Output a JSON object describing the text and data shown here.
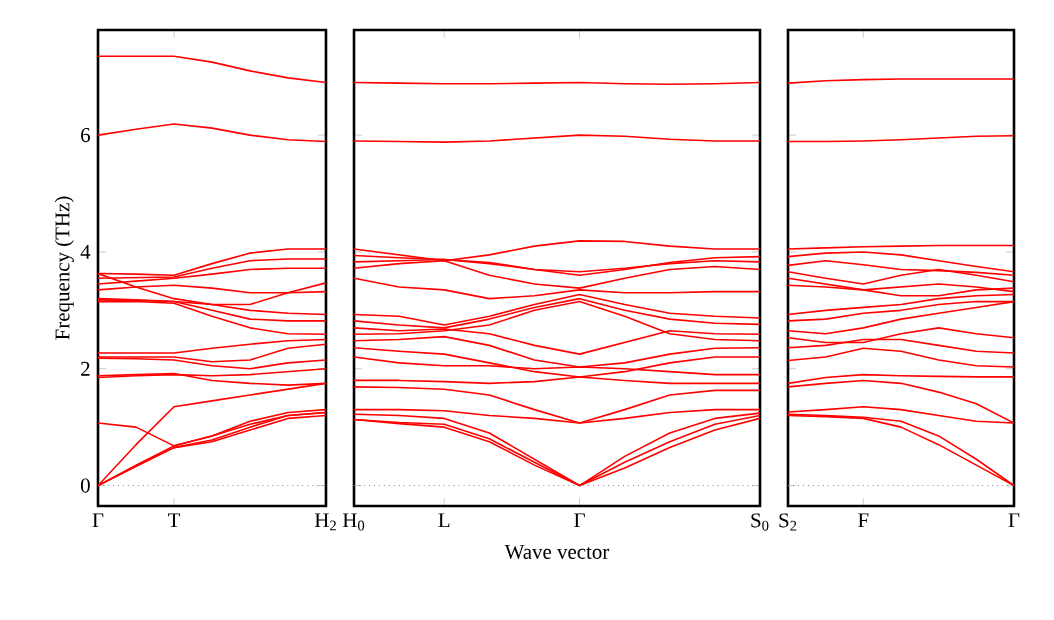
{
  "chart_data": [
    {
      "type": "line",
      "ylabel": "Frequency (THz)",
      "ylim": [
        -0.35,
        7.8
      ],
      "categories": [
        "Γ",
        null,
        "T",
        null,
        null,
        null,
        "H$_{2}$"
      ],
      "yticks": [
        0,
        2,
        4,
        6
      ],
      "ref_lines": [
        {
          "axis": "y",
          "value": 0,
          "color": "#8080c0",
          "line_style": "dotted"
        }
      ],
      "series": [
        {
          "color": "#ff0000",
          "values": [
            7.35,
            7.35,
            7.35,
            7.25,
            7.1,
            6.98,
            6.9
          ]
        },
        {
          "color": "#ff0000",
          "values": [
            6.0,
            6.1,
            6.19,
            6.12,
            6.0,
            5.92,
            5.89
          ]
        },
        {
          "color": "#ff0000",
          "values": [
            3.63,
            3.62,
            3.6,
            3.8,
            3.98,
            4.05,
            4.05
          ]
        },
        {
          "color": "#ff0000",
          "values": [
            3.55,
            3.56,
            3.57,
            3.72,
            3.85,
            3.88,
            3.88
          ]
        },
        {
          "color": "#ff0000",
          "values": [
            3.45,
            3.5,
            3.55,
            3.62,
            3.7,
            3.72,
            3.72
          ]
        },
        {
          "color": "#ff0000",
          "values": [
            3.63,
            3.4,
            3.2,
            3.1,
            3.1,
            3.3,
            3.47
          ]
        },
        {
          "color": "#ff0000",
          "values": [
            3.35,
            3.4,
            3.43,
            3.38,
            3.3,
            3.3,
            3.32
          ]
        },
        {
          "color": "#ff0000",
          "values": [
            3.2,
            3.18,
            3.15,
            3.1,
            3.0,
            2.95,
            2.93
          ]
        },
        {
          "color": "#ff0000",
          "values": [
            3.18,
            3.17,
            3.15,
            3.0,
            2.85,
            2.82,
            2.82
          ]
        },
        {
          "color": "#ff0000",
          "values": [
            3.15,
            3.15,
            3.12,
            2.9,
            2.7,
            2.6,
            2.59
          ]
        },
        {
          "color": "#ff0000",
          "values": [
            2.27,
            2.27,
            2.27,
            2.35,
            2.42,
            2.48,
            2.5
          ]
        },
        {
          "color": "#ff0000",
          "values": [
            2.2,
            2.2,
            2.2,
            2.12,
            2.15,
            2.35,
            2.42
          ]
        },
        {
          "color": "#ff0000",
          "values": [
            2.18,
            2.17,
            2.15,
            2.05,
            2.0,
            2.1,
            2.15
          ]
        },
        {
          "color": "#ff0000",
          "values": [
            1.85,
            1.88,
            1.9,
            1.88,
            1.9,
            1.95,
            2.0
          ]
        },
        {
          "color": "#ff0000",
          "values": [
            1.88,
            1.9,
            1.92,
            1.8,
            1.75,
            1.72,
            1.75
          ]
        },
        {
          "color": "#ff0000",
          "values": [
            1.07,
            1.0,
            0.68,
            0.85,
            1.05,
            1.2,
            1.25
          ]
        },
        {
          "color": "#ff0000",
          "values": [
            0,
            0.7,
            1.35,
            1.45,
            1.55,
            1.65,
            1.75
          ]
        },
        {
          "color": "#ff0000",
          "values": [
            0,
            0.35,
            0.68,
            0.85,
            1.1,
            1.25,
            1.3
          ]
        },
        {
          "color": "#ff0000",
          "values": [
            0,
            0.33,
            0.65,
            0.78,
            1.0,
            1.2,
            1.25
          ]
        },
        {
          "color": "#ff0000",
          "values": [
            0,
            0.33,
            0.65,
            0.75,
            0.95,
            1.15,
            1.2
          ]
        }
      ]
    },
    {
      "type": "line",
      "xlabel": "Wave vector",
      "ylim": [
        -0.35,
        7.8
      ],
      "tick_labels": "x",
      "categories": [
        "H$_{0}$",
        null,
        "L",
        null,
        null,
        "Γ",
        null,
        null,
        null,
        "S$_{0}$"
      ],
      "yticks": [
        0,
        2,
        4,
        6
      ],
      "ref_lines": [
        {
          "axis": "y",
          "value": 0,
          "color": "#8080c0",
          "line_style": "dotted"
        }
      ],
      "series": [
        {
          "color": "#ff0000",
          "values": [
            6.9,
            6.89,
            6.88,
            6.88,
            6.89,
            6.9,
            6.88,
            6.87,
            6.88,
            6.9
          ]
        },
        {
          "color": "#ff0000",
          "values": [
            5.9,
            5.89,
            5.88,
            5.9,
            5.95,
            6.0,
            5.98,
            5.93,
            5.9,
            5.9
          ]
        },
        {
          "color": "#ff0000",
          "values": [
            4.05,
            3.95,
            3.85,
            3.95,
            4.1,
            4.19,
            4.18,
            4.1,
            4.05,
            4.05
          ]
        },
        {
          "color": "#ff0000",
          "values": [
            3.94,
            3.9,
            3.87,
            3.82,
            3.7,
            3.6,
            3.7,
            3.82,
            3.9,
            3.92
          ]
        },
        {
          "color": "#ff0000",
          "values": [
            3.83,
            3.85,
            3.87,
            3.8,
            3.7,
            3.66,
            3.72,
            3.8,
            3.85,
            3.83
          ]
        },
        {
          "color": "#ff0000",
          "values": [
            3.72,
            3.8,
            3.85,
            3.6,
            3.45,
            3.38,
            3.55,
            3.7,
            3.75,
            3.7
          ]
        },
        {
          "color": "#ff0000",
          "values": [
            3.55,
            3.4,
            3.35,
            3.2,
            3.25,
            3.35,
            3.3,
            3.3,
            3.32,
            3.32
          ]
        },
        {
          "color": "#ff0000",
          "values": [
            2.93,
            2.9,
            2.75,
            2.9,
            3.1,
            3.27,
            3.1,
            2.95,
            2.9,
            2.87
          ]
        },
        {
          "color": "#ff0000",
          "values": [
            2.82,
            2.75,
            2.7,
            2.85,
            3.05,
            3.2,
            3.0,
            2.85,
            2.78,
            2.76
          ]
        },
        {
          "color": "#ff0000",
          "values": [
            2.7,
            2.65,
            2.68,
            2.6,
            2.4,
            2.25,
            2.45,
            2.65,
            2.6,
            2.59
          ]
        },
        {
          "color": "#ff0000",
          "values": [
            2.59,
            2.6,
            2.65,
            2.75,
            3.0,
            3.15,
            2.9,
            2.6,
            2.5,
            2.48
          ]
        },
        {
          "color": "#ff0000",
          "values": [
            2.48,
            2.5,
            2.55,
            2.4,
            2.15,
            2.03,
            2.1,
            2.25,
            2.35,
            2.36
          ]
        },
        {
          "color": "#ff0000",
          "values": [
            2.36,
            2.3,
            2.25,
            2.1,
            1.95,
            1.86,
            1.95,
            2.1,
            2.2,
            2.2
          ]
        },
        {
          "color": "#ff0000",
          "values": [
            2.2,
            2.1,
            2.05,
            2.05,
            2.0,
            2.03,
            2.0,
            1.95,
            1.9,
            1.9
          ]
        },
        {
          "color": "#ff0000",
          "values": [
            1.8,
            1.8,
            1.78,
            1.75,
            1.78,
            1.86,
            1.8,
            1.75,
            1.75,
            1.75
          ]
        },
        {
          "color": "#ff0000",
          "values": [
            1.69,
            1.68,
            1.65,
            1.55,
            1.3,
            1.07,
            1.3,
            1.55,
            1.63,
            1.63
          ]
        },
        {
          "color": "#ff0000",
          "values": [
            1.3,
            1.3,
            1.28,
            1.2,
            1.15,
            1.07,
            1.15,
            1.25,
            1.3,
            1.3
          ]
        },
        {
          "color": "#ff0000",
          "values": [
            1.22,
            1.2,
            1.15,
            0.9,
            0.45,
            0,
            0.5,
            0.9,
            1.15,
            1.24
          ]
        },
        {
          "color": "#ff0000",
          "values": [
            1.13,
            1.08,
            1.05,
            0.8,
            0.4,
            0,
            0.4,
            0.75,
            1.05,
            1.2
          ]
        },
        {
          "color": "#ff0000",
          "values": [
            1.13,
            1.06,
            1.0,
            0.75,
            0.35,
            0,
            0.3,
            0.65,
            0.95,
            1.15
          ]
        }
      ]
    },
    {
      "type": "line",
      "ylim": [
        -0.35,
        7.8
      ],
      "tick_labels": "x",
      "categories": [
        "S$_{2}$",
        null,
        "F",
        null,
        null,
        null,
        "Γ"
      ],
      "yticks": [
        0,
        2,
        4,
        6
      ],
      "ref_lines": [
        {
          "axis": "y",
          "value": 0,
          "color": "#8080c0",
          "line_style": "dotted"
        }
      ],
      "series": [
        {
          "color": "#ff0000",
          "values": [
            6.89,
            6.93,
            6.95,
            6.96,
            6.96,
            6.96,
            6.96
          ]
        },
        {
          "color": "#ff0000",
          "values": [
            5.89,
            5.89,
            5.9,
            5.92,
            5.95,
            5.98,
            5.99
          ]
        },
        {
          "color": "#ff0000",
          "values": [
            4.05,
            4.07,
            4.09,
            4.1,
            4.11,
            4.11,
            4.11
          ]
        },
        {
          "color": "#ff0000",
          "values": [
            3.92,
            3.98,
            4.0,
            3.95,
            3.85,
            3.75,
            3.66
          ]
        },
        {
          "color": "#ff0000",
          "values": [
            3.77,
            3.85,
            3.78,
            3.7,
            3.68,
            3.65,
            3.6
          ]
        },
        {
          "color": "#ff0000",
          "values": [
            3.66,
            3.55,
            3.45,
            3.6,
            3.7,
            3.6,
            3.49
          ]
        },
        {
          "color": "#ff0000",
          "values": [
            3.55,
            3.45,
            3.35,
            3.25,
            3.25,
            3.35,
            3.38
          ]
        },
        {
          "color": "#ff0000",
          "values": [
            3.43,
            3.4,
            3.35,
            3.4,
            3.45,
            3.4,
            3.32
          ]
        },
        {
          "color": "#ff0000",
          "values": [
            2.93,
            3.0,
            3.05,
            3.1,
            3.2,
            3.25,
            3.27
          ]
        },
        {
          "color": "#ff0000",
          "values": [
            2.82,
            2.85,
            2.95,
            3.0,
            3.1,
            3.15,
            3.15
          ]
        },
        {
          "color": "#ff0000",
          "values": [
            2.65,
            2.6,
            2.7,
            2.85,
            2.95,
            3.05,
            3.15
          ]
        },
        {
          "color": "#ff0000",
          "values": [
            2.53,
            2.45,
            2.45,
            2.6,
            2.7,
            2.6,
            2.53
          ]
        },
        {
          "color": "#ff0000",
          "values": [
            2.36,
            2.4,
            2.5,
            2.5,
            2.4,
            2.3,
            2.27
          ]
        },
        {
          "color": "#ff0000",
          "values": [
            2.14,
            2.2,
            2.35,
            2.3,
            2.15,
            2.05,
            2.03
          ]
        },
        {
          "color": "#ff0000",
          "values": [
            1.75,
            1.85,
            1.9,
            1.88,
            1.87,
            1.86,
            1.86
          ]
        },
        {
          "color": "#ff0000",
          "values": [
            1.69,
            1.75,
            1.8,
            1.75,
            1.6,
            1.4,
            1.07
          ]
        },
        {
          "color": "#ff0000",
          "values": [
            1.26,
            1.3,
            1.35,
            1.3,
            1.2,
            1.1,
            1.07
          ]
        },
        {
          "color": "#ff0000",
          "values": [
            1.22,
            1.2,
            1.17,
            1.1,
            0.85,
            0.45,
            0
          ]
        },
        {
          "color": "#ff0000",
          "values": [
            1.2,
            1.18,
            1.15,
            1.0,
            0.7,
            0.35,
            0
          ]
        }
      ]
    }
  ]
}
